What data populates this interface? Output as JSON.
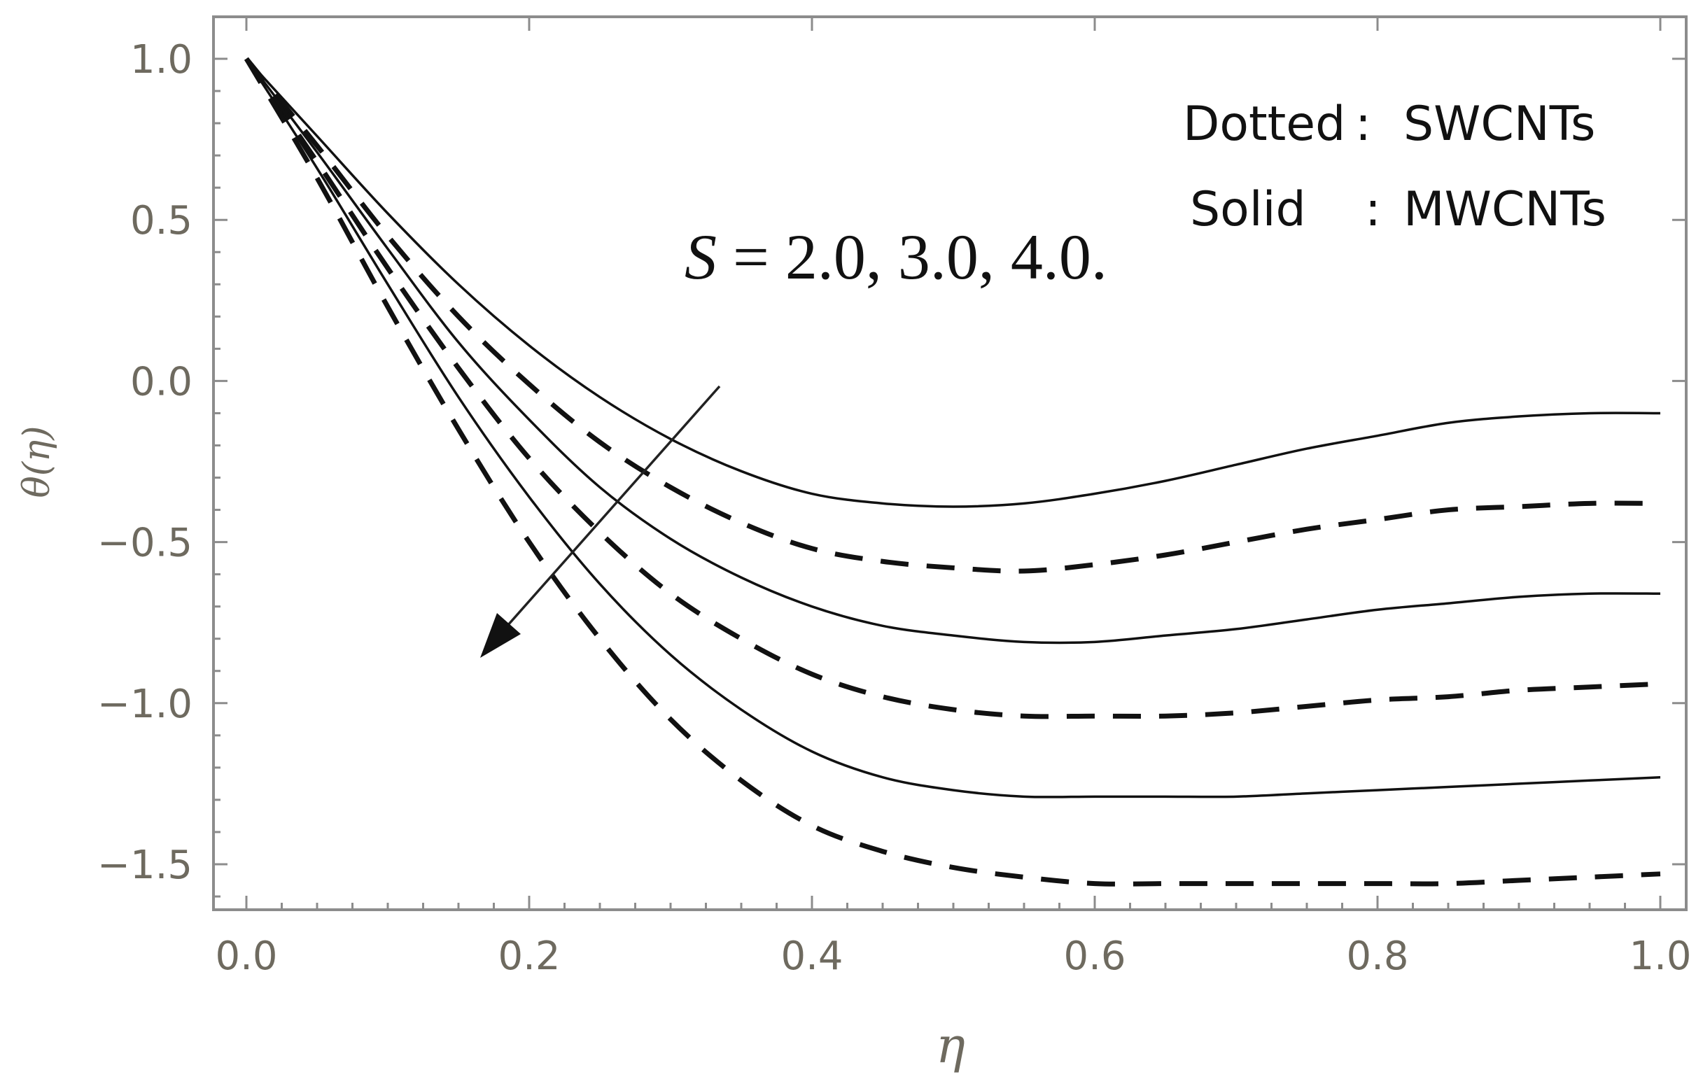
{
  "chart_data": {
    "type": "line",
    "xlabel": "η",
    "ylabel": "θ(η)",
    "xlim": [
      0,
      1
    ],
    "ylim": [
      -1.65,
      1.1
    ],
    "x_ticks": [
      "0.0",
      "0.2",
      "0.4",
      "0.6",
      "0.8",
      "1.0"
    ],
    "y_ticks": [
      "1.0",
      "0.5",
      "0.0",
      "−0.5",
      "−1.0",
      "−1.5"
    ],
    "x_tick_values": [
      0,
      0.2,
      0.4,
      0.6,
      0.8,
      1.0
    ],
    "y_tick_values": [
      1.0,
      0.5,
      0.0,
      -0.5,
      -1.0,
      -1.5
    ],
    "grid": false,
    "legend": {
      "placement": "top-right",
      "entries": [
        {
          "label": "Dotted",
          "separator": ":",
          "value": "SWCNTs"
        },
        {
          "label": "Solid",
          "separator": ":",
          "value": "MWCNTs"
        }
      ]
    },
    "annotation": {
      "text_symbol": "S",
      "text_rest": " = 2.0, 3.0, 4.0.",
      "arrow": "pointing down-left across the curves",
      "placement": "center-left"
    },
    "x": [
      0.0,
      0.05,
      0.1,
      0.15,
      0.2,
      0.25,
      0.3,
      0.35,
      0.4,
      0.45,
      0.5,
      0.55,
      0.6,
      0.65,
      0.7,
      0.75,
      0.8,
      0.85,
      0.9,
      0.95,
      1.0
    ],
    "series": [
      {
        "style": "solid",
        "values": [
          1.0,
          0.76,
          0.52,
          0.3,
          0.11,
          -0.05,
          -0.18,
          -0.28,
          -0.35,
          -0.38,
          -0.39,
          -0.38,
          -0.35,
          -0.31,
          -0.26,
          -0.21,
          -0.17,
          -0.13,
          -0.11,
          -0.1,
          -0.1
        ]
      },
      {
        "style": "dashed",
        "values": [
          1.0,
          0.73,
          0.45,
          0.2,
          -0.01,
          -0.19,
          -0.33,
          -0.44,
          -0.52,
          -0.56,
          -0.58,
          -0.59,
          -0.57,
          -0.54,
          -0.5,
          -0.46,
          -0.43,
          -0.4,
          -0.39,
          -0.38,
          -0.38
        ]
      },
      {
        "style": "solid",
        "values": [
          1.0,
          0.71,
          0.41,
          0.12,
          -0.12,
          -0.33,
          -0.49,
          -0.61,
          -0.7,
          -0.76,
          -0.79,
          -0.81,
          -0.81,
          -0.79,
          -0.77,
          -0.74,
          -0.71,
          -0.69,
          -0.67,
          -0.66,
          -0.66
        ]
      },
      {
        "style": "dashed",
        "values": [
          1.0,
          0.68,
          0.35,
          0.04,
          -0.24,
          -0.47,
          -0.66,
          -0.8,
          -0.91,
          -0.98,
          -1.02,
          -1.04,
          -1.04,
          -1.04,
          -1.03,
          -1.01,
          -0.99,
          -0.98,
          -0.96,
          -0.95,
          -0.94
        ]
      },
      {
        "style": "solid",
        "values": [
          1.0,
          0.66,
          0.3,
          -0.05,
          -0.36,
          -0.63,
          -0.85,
          -1.02,
          -1.15,
          -1.23,
          -1.27,
          -1.29,
          -1.29,
          -1.29,
          -1.29,
          -1.28,
          -1.27,
          -1.26,
          -1.25,
          -1.24,
          -1.23
        ]
      },
      {
        "style": "dashed",
        "values": [
          1.0,
          0.63,
          0.23,
          -0.15,
          -0.5,
          -0.8,
          -1.05,
          -1.24,
          -1.38,
          -1.46,
          -1.51,
          -1.54,
          -1.56,
          -1.56,
          -1.56,
          -1.56,
          -1.56,
          -1.56,
          -1.55,
          -1.54,
          -1.53
        ]
      }
    ]
  }
}
